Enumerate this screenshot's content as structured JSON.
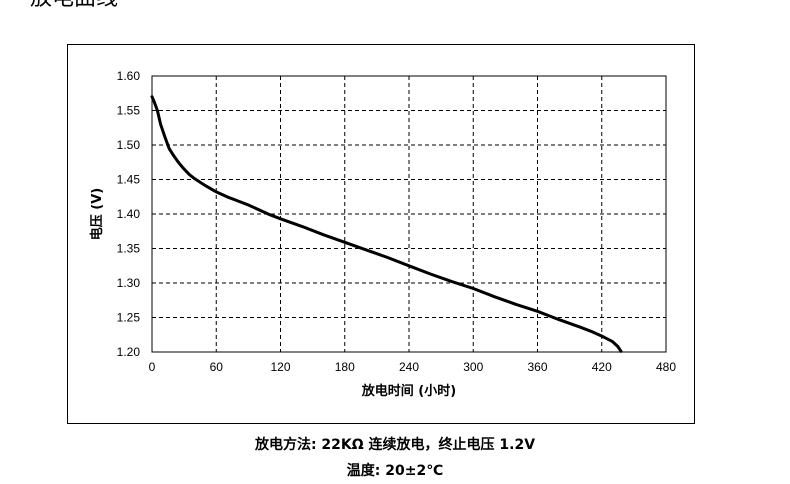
{
  "section_title": "放电曲线",
  "chart_data": {
    "type": "line",
    "xlabel": "放电时间 (小时)",
    "ylabel": "电压 (V)",
    "xlim": [
      0,
      480
    ],
    "ylim": [
      1.2,
      1.6
    ],
    "xticks": [
      0,
      60,
      120,
      180,
      240,
      300,
      360,
      420,
      480
    ],
    "yticks": [
      1.2,
      1.25,
      1.3,
      1.35,
      1.4,
      1.45,
      1.5,
      1.55,
      1.6
    ],
    "xtick_labels": [
      "0",
      "60",
      "120",
      "180",
      "240",
      "300",
      "360",
      "420",
      "480"
    ],
    "ytick_labels": [
      "1.20",
      "1.25",
      "1.30",
      "1.35",
      "1.40",
      "1.45",
      "1.50",
      "1.55",
      "1.60"
    ],
    "grid": true,
    "grid_style": "dashed",
    "line_color": "#000000",
    "series": [
      {
        "x": [
          0,
          2,
          5,
          8,
          12,
          16,
          20,
          25,
          30,
          35,
          40,
          50,
          60,
          70,
          80,
          90,
          100,
          110,
          120,
          140,
          160,
          180,
          200,
          220,
          240,
          260,
          280,
          300,
          320,
          340,
          360,
          380,
          400,
          410,
          420,
          430,
          435,
          438
        ],
        "y": [
          1.57,
          1.563,
          1.55,
          1.53,
          1.512,
          1.495,
          1.485,
          1.474,
          1.465,
          1.457,
          1.451,
          1.441,
          1.432,
          1.425,
          1.419,
          1.413,
          1.406,
          1.399,
          1.393,
          1.382,
          1.37,
          1.359,
          1.348,
          1.337,
          1.325,
          1.313,
          1.302,
          1.292,
          1.28,
          1.269,
          1.259,
          1.247,
          1.236,
          1.23,
          1.223,
          1.215,
          1.208,
          1.201
        ]
      }
    ]
  },
  "captions": {
    "method": "放电方法: 22KΩ 连续放电，终止电压 1.2V",
    "temperature": "温度: 20±2℃"
  }
}
